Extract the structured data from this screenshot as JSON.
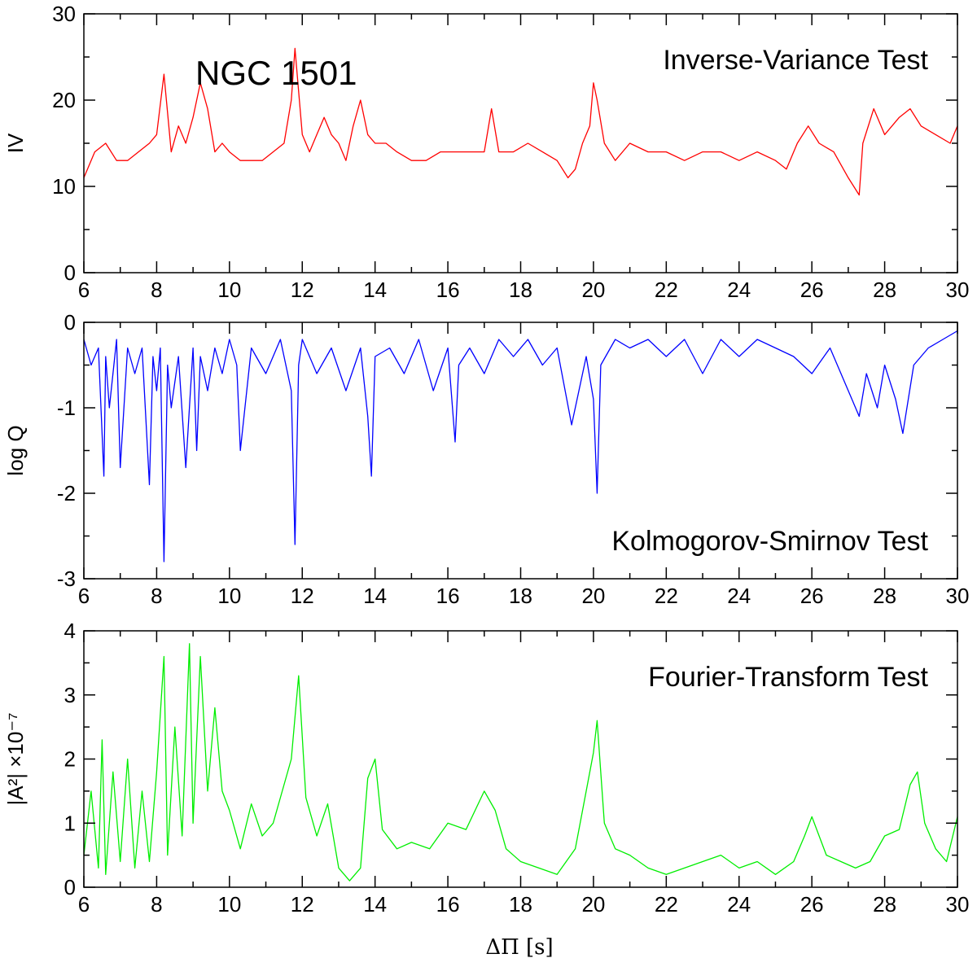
{
  "annotation": "NGC 1501",
  "xlabel": "ΔΠ [s]",
  "chart_data": [
    {
      "type": "line",
      "title": "Inverse-Variance Test",
      "ylabel": "IV",
      "xlim": [
        6,
        30
      ],
      "ylim": [
        0,
        30
      ],
      "xticks": [
        "6",
        "8",
        "10",
        "12",
        "14",
        "16",
        "18",
        "20",
        "22",
        "24",
        "26",
        "28",
        "30"
      ],
      "yticks": [
        "0",
        "10",
        "20",
        "30"
      ],
      "color": "#ff0000",
      "x": [
        6.0,
        6.3,
        6.6,
        6.9,
        7.2,
        7.5,
        7.8,
        8.0,
        8.2,
        8.4,
        8.6,
        8.8,
        9.0,
        9.2,
        9.4,
        9.6,
        9.8,
        10.0,
        10.3,
        10.6,
        10.9,
        11.2,
        11.5,
        11.7,
        11.8,
        11.9,
        12.0,
        12.2,
        12.4,
        12.6,
        12.8,
        13.0,
        13.2,
        13.4,
        13.6,
        13.8,
        14.0,
        14.3,
        14.6,
        15.0,
        15.4,
        15.8,
        16.2,
        16.6,
        17.0,
        17.2,
        17.4,
        17.8,
        18.2,
        18.6,
        19.0,
        19.3,
        19.5,
        19.7,
        19.9,
        20.0,
        20.1,
        20.3,
        20.6,
        21.0,
        21.5,
        22.0,
        22.5,
        23.0,
        23.5,
        24.0,
        24.5,
        25.0,
        25.3,
        25.6,
        25.9,
        26.2,
        26.6,
        27.0,
        27.3,
        27.4,
        27.7,
        28.0,
        28.4,
        28.7,
        29.0,
        29.4,
        29.8,
        30.0
      ],
      "y": [
        11,
        14,
        15,
        13,
        13,
        14,
        15,
        16,
        23,
        14,
        17,
        15,
        18,
        22,
        19,
        14,
        15,
        14,
        13,
        13,
        13,
        14,
        15,
        20,
        26,
        21,
        16,
        14,
        16,
        18,
        16,
        15,
        13,
        17,
        20,
        16,
        15,
        15,
        14,
        13,
        13,
        14,
        14,
        14,
        14,
        19,
        14,
        14,
        15,
        14,
        13,
        11,
        12,
        15,
        17,
        22,
        20,
        15,
        13,
        15,
        14,
        14,
        13,
        14,
        14,
        13,
        14,
        13,
        12,
        15,
        17,
        15,
        14,
        11,
        9,
        15,
        19,
        16,
        18,
        19,
        17,
        16,
        15,
        17
      ]
    },
    {
      "type": "line",
      "title": "Kolmogorov-Smirnov Test",
      "ylabel": "log Q",
      "xlim": [
        6,
        30
      ],
      "ylim": [
        -3,
        0
      ],
      "xticks": [
        "6",
        "8",
        "10",
        "12",
        "14",
        "16",
        "18",
        "20",
        "22",
        "24",
        "26",
        "28",
        "30"
      ],
      "yticks": [
        "-3",
        "-2",
        "-1",
        "0"
      ],
      "color": "#0000ff",
      "x": [
        6.0,
        6.2,
        6.4,
        6.55,
        6.6,
        6.7,
        6.9,
        7.0,
        7.2,
        7.4,
        7.6,
        7.8,
        7.9,
        8.0,
        8.1,
        8.2,
        8.3,
        8.4,
        8.6,
        8.8,
        9.0,
        9.1,
        9.2,
        9.4,
        9.6,
        9.8,
        10.0,
        10.2,
        10.3,
        10.6,
        11.0,
        11.4,
        11.7,
        11.8,
        11.9,
        12.0,
        12.4,
        12.8,
        13.2,
        13.6,
        13.8,
        13.9,
        14.0,
        14.4,
        14.8,
        15.2,
        15.6,
        16.0,
        16.2,
        16.3,
        16.6,
        17.0,
        17.4,
        17.8,
        18.2,
        18.6,
        19.0,
        19.4,
        19.8,
        20.0,
        20.1,
        20.2,
        20.6,
        21.0,
        21.5,
        22.0,
        22.5,
        23.0,
        23.5,
        24.0,
        24.5,
        25.0,
        25.5,
        26.0,
        26.5,
        27.0,
        27.3,
        27.5,
        27.8,
        28.0,
        28.3,
        28.5,
        28.8,
        29.2,
        29.6,
        30.0
      ],
      "y": [
        -0.2,
        -0.5,
        -0.3,
        -1.8,
        -0.4,
        -1.0,
        -0.2,
        -1.7,
        -0.3,
        -0.6,
        -0.3,
        -1.9,
        -0.4,
        -0.8,
        -0.3,
        -2.8,
        -0.5,
        -1.0,
        -0.4,
        -1.7,
        -0.3,
        -1.5,
        -0.4,
        -0.8,
        -0.3,
        -0.6,
        -0.2,
        -0.5,
        -1.5,
        -0.3,
        -0.6,
        -0.2,
        -0.8,
        -2.6,
        -0.5,
        -0.2,
        -0.6,
        -0.3,
        -0.8,
        -0.3,
        -1.1,
        -1.8,
        -0.4,
        -0.3,
        -0.6,
        -0.2,
        -0.8,
        -0.3,
        -1.4,
        -0.5,
        -0.3,
        -0.6,
        -0.2,
        -0.4,
        -0.2,
        -0.5,
        -0.3,
        -1.2,
        -0.4,
        -0.9,
        -2.0,
        -0.5,
        -0.2,
        -0.3,
        -0.2,
        -0.4,
        -0.2,
        -0.6,
        -0.2,
        -0.4,
        -0.2,
        -0.3,
        -0.4,
        -0.6,
        -0.3,
        -0.8,
        -1.1,
        -0.6,
        -1.0,
        -0.5,
        -0.9,
        -1.3,
        -0.5,
        -0.3,
        -0.2,
        -0.1
      ]
    },
    {
      "type": "line",
      "title": "Fourier-Transform Test",
      "ylabel": "|A²| ×10⁻⁷",
      "xlim": [
        6,
        30
      ],
      "ylim": [
        0,
        4
      ],
      "xticks": [
        "6",
        "8",
        "10",
        "12",
        "14",
        "16",
        "18",
        "20",
        "22",
        "24",
        "26",
        "28",
        "30"
      ],
      "yticks": [
        "0",
        "1",
        "2",
        "3",
        "4"
      ],
      "color": "#00ee00",
      "x": [
        6.0,
        6.2,
        6.4,
        6.5,
        6.6,
        6.8,
        7.0,
        7.2,
        7.4,
        7.6,
        7.8,
        8.0,
        8.2,
        8.3,
        8.5,
        8.7,
        8.9,
        9.0,
        9.2,
        9.4,
        9.6,
        9.8,
        10.0,
        10.3,
        10.6,
        10.9,
        11.2,
        11.5,
        11.7,
        11.9,
        12.1,
        12.4,
        12.7,
        13.0,
        13.3,
        13.6,
        13.8,
        14.0,
        14.2,
        14.6,
        15.0,
        15.5,
        16.0,
        16.5,
        17.0,
        17.3,
        17.6,
        18.0,
        18.5,
        19.0,
        19.5,
        19.8,
        20.0,
        20.1,
        20.3,
        20.6,
        21.0,
        21.5,
        22.0,
        22.5,
        23.0,
        23.5,
        24.0,
        24.5,
        25.0,
        25.5,
        25.8,
        26.0,
        26.4,
        26.8,
        27.2,
        27.6,
        28.0,
        28.4,
        28.7,
        28.9,
        29.1,
        29.4,
        29.7,
        30.0
      ],
      "y": [
        0.5,
        1.5,
        0.3,
        2.3,
        0.2,
        1.8,
        0.4,
        2.0,
        0.3,
        1.5,
        0.4,
        1.8,
        3.6,
        0.5,
        2.5,
        0.8,
        3.8,
        1.0,
        3.6,
        1.5,
        2.8,
        1.5,
        1.2,
        0.6,
        1.3,
        0.8,
        1.0,
        1.6,
        2.0,
        3.3,
        1.4,
        0.8,
        1.3,
        0.3,
        0.1,
        0.3,
        1.7,
        2.0,
        0.9,
        0.6,
        0.7,
        0.6,
        1.0,
        0.9,
        1.5,
        1.2,
        0.6,
        0.4,
        0.3,
        0.2,
        0.6,
        1.5,
        2.1,
        2.6,
        1.0,
        0.6,
        0.5,
        0.3,
        0.2,
        0.3,
        0.4,
        0.5,
        0.3,
        0.4,
        0.2,
        0.4,
        0.8,
        1.1,
        0.5,
        0.4,
        0.3,
        0.4,
        0.8,
        0.9,
        1.6,
        1.8,
        1.0,
        0.6,
        0.4,
        1.1
      ]
    }
  ]
}
